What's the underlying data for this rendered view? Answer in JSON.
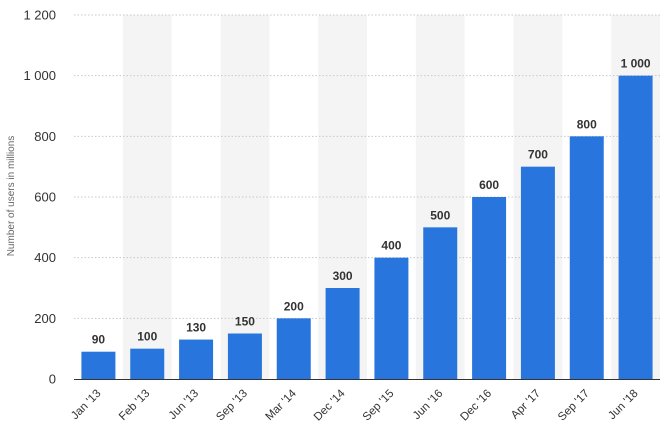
{
  "chart_data": {
    "type": "bar",
    "title": "",
    "xlabel": "",
    "ylabel": "Number of users in millions",
    "categories": [
      "Jan '13",
      "Feb '13",
      "Jun '13",
      "Sep '13",
      "Mar '14",
      "Dec '14",
      "Sep '15",
      "Jun '16",
      "Dec '16",
      "Apr '17",
      "Sep '17",
      "Jun '18"
    ],
    "values": [
      90,
      100,
      130,
      150,
      200,
      300,
      400,
      500,
      600,
      700,
      800,
      1000
    ],
    "data_labels": [
      "90",
      "100",
      "130",
      "150",
      "200",
      "300",
      "400",
      "500",
      "600",
      "700",
      "800",
      "1 000"
    ],
    "ylim": [
      0,
      1200
    ],
    "yticks": [
      0,
      200,
      400,
      600,
      800,
      1000,
      1200
    ],
    "ytick_labels": [
      "0",
      "200",
      "400",
      "600",
      "800",
      "1 000",
      "1 200"
    ],
    "grid": true,
    "legend": "none",
    "colors": {
      "bar": "#2876dd",
      "band": "#f4f4f4",
      "grid": "#c8c8c8",
      "axis": "#333333"
    }
  }
}
